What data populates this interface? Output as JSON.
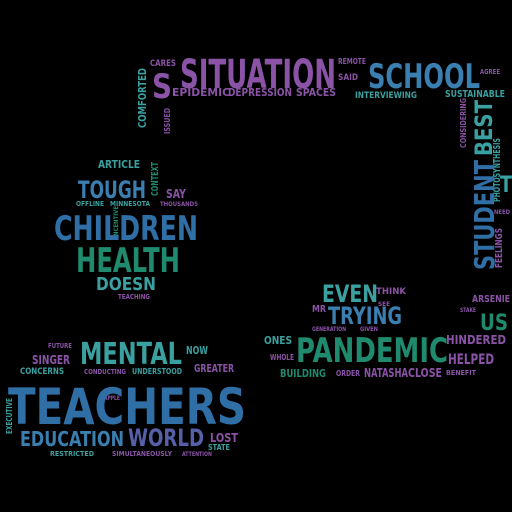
{
  "palette": {
    "background": "#000000",
    "colors": [
      "#2f6fa6",
      "#3aa1a0",
      "#8a53a6",
      "#5560a8",
      "#1f8a6e",
      "#3a7fb0"
    ]
  },
  "words": [
    {
      "text": "SITUATION",
      "color": "#8a53a6"
    },
    {
      "text": "SCHOOL",
      "color": "#3a7fb0"
    },
    {
      "text": "S",
      "color": "#8a53a6"
    },
    {
      "text": "CARES",
      "color": "#8a53a6"
    },
    {
      "text": "REMOTE",
      "color": "#8a53a6"
    },
    {
      "text": "SAID",
      "color": "#8a53a6"
    },
    {
      "text": "AGREE",
      "color": "#8a53a6"
    },
    {
      "text": "EPIDEMIC",
      "color": "#8a53a6"
    },
    {
      "text": "DEPRESSION",
      "color": "#8a53a6"
    },
    {
      "text": "SPACES",
      "color": "#8a53a6"
    },
    {
      "text": "INTERVIEWING",
      "color": "#3aa1a0"
    },
    {
      "text": "SUSTAINABLE",
      "color": "#3aa1a0"
    },
    {
      "text": "COMFORTED",
      "color": "#3aa1a0"
    },
    {
      "text": "ISSUED",
      "color": "#8a53a6"
    },
    {
      "text": "CONSIDERING",
      "color": "#8a53a6"
    },
    {
      "text": "BEST",
      "color": "#3aa1a0"
    },
    {
      "text": "PHOTOSYNTHESIS",
      "color": "#3aa1a0"
    },
    {
      "text": "STUDENT",
      "color": "#2f6fa6"
    },
    {
      "text": "T",
      "color": "#3aa1a0"
    },
    {
      "text": "NEED",
      "color": "#8a53a6"
    },
    {
      "text": "FEELINGS",
      "color": "#8a53a6"
    },
    {
      "text": "ARTICLE",
      "color": "#3aa1a0"
    },
    {
      "text": "CONTEXT",
      "color": "#1f8a6e"
    },
    {
      "text": "TOUGH",
      "color": "#3a7fb0"
    },
    {
      "text": "SAY",
      "color": "#8a53a6"
    },
    {
      "text": "OFFLINE",
      "color": "#3aa1a0"
    },
    {
      "text": "MINNESOTA",
      "color": "#3aa1a0"
    },
    {
      "text": "THOUSANDS",
      "color": "#8a53a6"
    },
    {
      "text": "INCENTIVE",
      "color": "#1f8a6e"
    },
    {
      "text": "CHILDREN",
      "color": "#2f6fa6"
    },
    {
      "text": "HEALTH",
      "color": "#1f8a6e"
    },
    {
      "text": "DOESN",
      "color": "#3aa1a0"
    },
    {
      "text": "TEACHING",
      "color": "#8a53a6"
    },
    {
      "text": "EVEN",
      "color": "#3aa1a0"
    },
    {
      "text": "THINK",
      "color": "#8a53a6"
    },
    {
      "text": "MR",
      "color": "#8a53a6"
    },
    {
      "text": "TRYING",
      "color": "#3a7fb0"
    },
    {
      "text": "SEE",
      "color": "#8a53a6"
    },
    {
      "text": "GENERATION",
      "color": "#8a53a6"
    },
    {
      "text": "GIVEN",
      "color": "#8a53a6"
    },
    {
      "text": "ARSENIE",
      "color": "#8a53a6"
    },
    {
      "text": "US",
      "color": "#1f8a6e"
    },
    {
      "text": "STAKE",
      "color": "#8a53a6"
    },
    {
      "text": "HINDERED",
      "color": "#8a53a6"
    },
    {
      "text": "ONES",
      "color": "#3aa1a0"
    },
    {
      "text": "PANDEMIC",
      "color": "#1f8a6e"
    },
    {
      "text": "HELPED",
      "color": "#8a53a6"
    },
    {
      "text": "WHOLE",
      "color": "#8a53a6"
    },
    {
      "text": "BUILDING",
      "color": "#1f8a6e"
    },
    {
      "text": "ORDER",
      "color": "#8a53a6"
    },
    {
      "text": "NATASHA",
      "color": "#8a53a6"
    },
    {
      "text": "CLOSE",
      "color": "#8a53a6"
    },
    {
      "text": "BENEFIT",
      "color": "#8a53a6"
    },
    {
      "text": "FUTURE",
      "color": "#8a53a6"
    },
    {
      "text": "MENTAL",
      "color": "#3aa1a0"
    },
    {
      "text": "NOW",
      "color": "#3aa1a0"
    },
    {
      "text": "SINGER",
      "color": "#8a53a6"
    },
    {
      "text": "CONCERNS",
      "color": "#3aa1a0"
    },
    {
      "text": "CONDUCTING",
      "color": "#8a53a6"
    },
    {
      "text": "UNDERSTOOD",
      "color": "#3aa1a0"
    },
    {
      "text": "GREATER",
      "color": "#8a53a6"
    },
    {
      "text": "APPLE",
      "color": "#8a53a6"
    },
    {
      "text": "TEACHERS",
      "color": "#2f6fa6"
    },
    {
      "text": "EXECUTIVE",
      "color": "#3aa1a0"
    },
    {
      "text": "EDUCATION",
      "color": "#3a7fb0"
    },
    {
      "text": "WORLD",
      "color": "#5560a8"
    },
    {
      "text": "LOST",
      "color": "#8a53a6"
    },
    {
      "text": "STATE",
      "color": "#3aa1a0"
    },
    {
      "text": "RESTRICTED",
      "color": "#3aa1a0"
    },
    {
      "text": "SIMULTANEOUSLY",
      "color": "#8a53a6"
    },
    {
      "text": "ATTENTION",
      "color": "#8a53a6"
    }
  ]
}
